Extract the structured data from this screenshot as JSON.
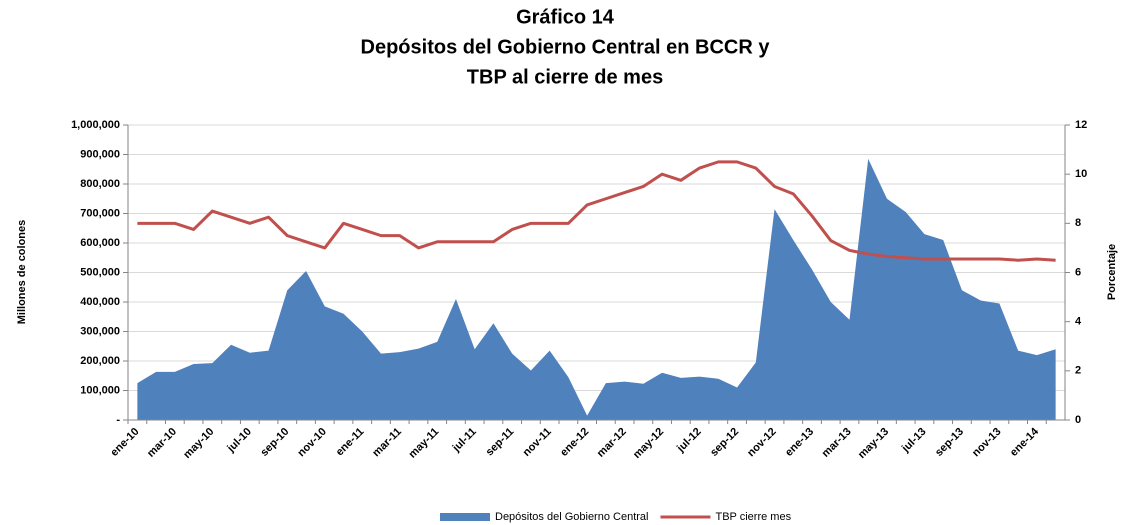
{
  "chart_data": {
    "type": "area-line",
    "title": [
      "Gráfico 14",
      "Depósitos del Gobierno Central en BCCR y",
      "TBP al cierre de mes"
    ],
    "y_label": "Millones de colones",
    "y2_label": "Porcentaje",
    "categories": [
      "ene-10",
      null,
      "mar-10",
      null,
      "may-10",
      null,
      "jul-10",
      null,
      "sep-10",
      null,
      "nov-10",
      null,
      "ene-11",
      null,
      "mar-11",
      null,
      "may-11",
      null,
      "jul-11",
      null,
      "sep-11",
      null,
      "nov-11",
      null,
      "ene-12",
      null,
      "mar-12",
      null,
      "may-12",
      null,
      "jul-12",
      null,
      "sep-12",
      null,
      "nov-12",
      null,
      "ene-13",
      null,
      "mar-13",
      null,
      "may-13",
      null,
      "jul-13",
      null,
      "sep-13",
      null,
      "nov-13",
      null,
      "ene-14",
      null
    ],
    "series": [
      {
        "name": "Depósitos del Gobierno Central",
        "color": "#4f81bd",
        "kind": "area",
        "values": [
          125000,
          163000,
          163000,
          190000,
          193000,
          255000,
          228000,
          235000,
          440000,
          505000,
          385000,
          360000,
          300000,
          225000,
          230000,
          242000,
          265000,
          410000,
          240000,
          328000,
          225000,
          168000,
          235000,
          145000,
          15000,
          125000,
          130000,
          123000,
          160000,
          143000,
          147000,
          140000,
          110000,
          195000,
          715000,
          610000,
          510000,
          400000,
          340000,
          885000,
          750000,
          705000,
          630000,
          610000,
          440000,
          405000,
          395000,
          235000,
          220000,
          240000
        ]
      },
      {
        "name": "TBP cierre mes",
        "color": "#c0504d",
        "kind": "line",
        "axis": "y2",
        "values": [
          8.0,
          8.0,
          8.0,
          7.75,
          8.5,
          8.25,
          8.0,
          8.25,
          7.5,
          7.25,
          7.0,
          8.0,
          7.75,
          7.5,
          7.5,
          7.0,
          7.25,
          7.25,
          7.25,
          7.25,
          7.75,
          8.0,
          8.0,
          8.0,
          8.75,
          9.0,
          9.25,
          9.5,
          10.0,
          9.75,
          10.25,
          10.5,
          10.5,
          10.25,
          9.5,
          9.2,
          8.3,
          7.3,
          6.9,
          6.75,
          6.65,
          6.6,
          6.55,
          6.55,
          6.55,
          6.55,
          6.55,
          6.5,
          6.55,
          6.5
        ]
      }
    ],
    "ylim": [
      0,
      1000000
    ],
    "yticks": [
      {
        "value": 0,
        "label": "-"
      },
      {
        "value": 100000,
        "label": "100,000"
      },
      {
        "value": 200000,
        "label": "200,000"
      },
      {
        "value": 300000,
        "label": "300,000"
      },
      {
        "value": 400000,
        "label": "400,000"
      },
      {
        "value": 500000,
        "label": "500,000"
      },
      {
        "value": 600000,
        "label": "600,000"
      },
      {
        "value": 700000,
        "label": "700,000"
      },
      {
        "value": 800000,
        "label": "800,000"
      },
      {
        "value": 900000,
        "label": "900,000"
      },
      {
        "value": 1000000,
        "label": "1,000,000"
      }
    ],
    "y2lim": [
      0,
      12
    ],
    "y2ticks": [
      0,
      2,
      4,
      6,
      8,
      10,
      12
    ],
    "grid": true,
    "legend": "bottom"
  }
}
